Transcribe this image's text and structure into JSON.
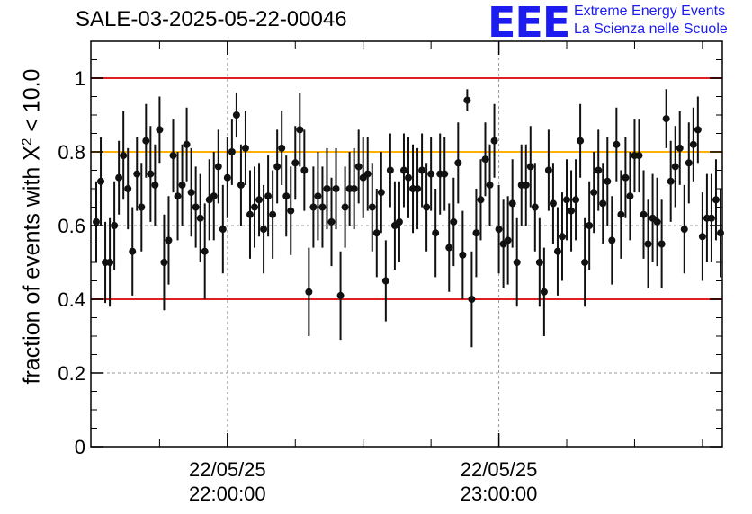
{
  "title": "SALE-03-2025-05-22-00046",
  "logo": {
    "mark": "EEE",
    "line1": "Extreme Energy Events",
    "line2": "La Scienza nelle Scuole",
    "color": "#1c1cf0"
  },
  "chart_data": {
    "type": "scatter",
    "title": "SALE-03-2025-05-22-00046",
    "ylabel": {
      "prefix": "fraction of events with ",
      "symbol": "X",
      "exp": "2",
      "suffix": " < 10.0"
    },
    "xlabel": "",
    "x_unit": "minutes after 22/05/25 21:31",
    "xlim": [
      0,
      138
    ],
    "ylim": [
      0,
      1.1
    ],
    "y_ticks": [
      0,
      0.2,
      0.4,
      0.6,
      0.8,
      1
    ],
    "y_tick_labels": [
      "0",
      "0.2",
      "0.4",
      "0.6",
      "0.8",
      "1"
    ],
    "x_major_ticks": [
      {
        "x": 29,
        "date": "22/05/25",
        "time": "22:00:00"
      },
      {
        "x": 89,
        "date": "22/05/25",
        "time": "23:00:00"
      }
    ],
    "x_minor_step": 15,
    "grid": true,
    "reference_lines": [
      {
        "y": 1.0,
        "color": "#e02020"
      },
      {
        "y": 0.8,
        "color": "#ffb000"
      },
      {
        "y": 0.4,
        "color": "#e02020"
      }
    ],
    "series": [
      {
        "color": "#111111",
        "x": [
          0,
          1,
          2,
          3,
          4,
          5,
          6,
          7,
          8,
          9,
          10,
          11,
          12,
          13,
          14,
          15,
          16,
          17,
          18,
          19,
          20,
          21,
          22,
          23,
          24,
          25,
          26,
          27,
          28,
          29,
          30,
          31,
          32,
          33,
          34,
          35,
          36,
          37,
          38,
          39,
          40,
          41,
          42,
          43,
          44,
          45,
          46,
          47,
          48,
          49,
          50,
          51,
          52,
          53,
          54,
          55,
          56,
          57,
          58,
          59,
          60,
          61,
          62,
          63,
          64,
          65,
          66,
          67,
          68,
          69,
          70,
          71,
          72,
          73,
          74,
          75,
          76,
          77,
          78,
          79,
          80,
          81,
          82,
          83,
          84,
          85,
          86,
          87,
          88,
          89,
          90,
          91,
          92,
          93,
          94,
          95,
          96,
          97,
          98,
          99,
          100,
          101,
          102,
          103,
          104,
          105,
          106,
          107,
          108,
          109,
          110,
          111,
          112,
          113,
          114,
          115,
          116,
          117,
          118,
          119,
          120,
          121,
          122,
          123,
          124,
          125,
          126,
          127,
          128,
          129,
          130,
          131,
          132,
          133,
          134,
          135,
          136,
          137,
          138
        ],
        "y": [
          0.61,
          0.72,
          0.5,
          0.5,
          0.6,
          0.73,
          0.79,
          0.7,
          0.53,
          0.74,
          0.65,
          0.83,
          0.74,
          0.71,
          0.86,
          0.5,
          0.56,
          0.79,
          0.68,
          0.71,
          0.82,
          0.69,
          0.65,
          0.62,
          0.53,
          0.67,
          0.68,
          0.76,
          0.59,
          0.73,
          0.8,
          0.9,
          0.71,
          0.81,
          0.63,
          0.65,
          0.67,
          0.59,
          0.68,
          0.63,
          0.76,
          0.81,
          0.68,
          0.64,
          0.77,
          0.86,
          0.75,
          0.42,
          0.65,
          0.68,
          0.65,
          0.7,
          0.61,
          0.7,
          0.41,
          0.65,
          0.7,
          0.7,
          0.76,
          0.73,
          0.74,
          0.65,
          0.58,
          0.69,
          0.45,
          0.75,
          0.6,
          0.61,
          0.75,
          0.73,
          0.7,
          0.7,
          0.75,
          0.65,
          0.74,
          0.58,
          0.74,
          0.74,
          0.54,
          0.61,
          0.77,
          0.52,
          0.94,
          0.4,
          0.58,
          0.67,
          0.78,
          0.71,
          0.83,
          0.59,
          0.55,
          0.56,
          0.66,
          0.5,
          0.71,
          0.71,
          0.76,
          0.65,
          0.5,
          0.42,
          0.75,
          0.66,
          0.53,
          0.57,
          0.67,
          0.64,
          0.67,
          0.83,
          0.5,
          0.6,
          0.69,
          0.75,
          0.66,
          0.72,
          0.56,
          0.82,
          0.63,
          0.73,
          0.68,
          0.79,
          0.79,
          0.63,
          0.55,
          0.62,
          0.61,
          0.55,
          0.89,
          0.72,
          0.76,
          0.81,
          0.59,
          0.77,
          0.82,
          0.86,
          0.57,
          0.62,
          0.62,
          0.67,
          0.58
        ],
        "err": [
          0.11,
          0.12,
          0.11,
          0.12,
          0.12,
          0.1,
          0.12,
          0.11,
          0.12,
          0.1,
          0.12,
          0.1,
          0.13,
          0.11,
          0.09,
          0.13,
          0.12,
          0.1,
          0.12,
          0.11,
          0.1,
          0.12,
          0.11,
          0.12,
          0.13,
          0.11,
          0.12,
          0.1,
          0.12,
          0.11,
          0.09,
          0.06,
          0.11,
          0.1,
          0.12,
          0.11,
          0.1,
          0.12,
          0.11,
          0.12,
          0.1,
          0.1,
          0.11,
          0.12,
          0.1,
          0.1,
          0.11,
          0.12,
          0.11,
          0.12,
          0.11,
          0.11,
          0.12,
          0.11,
          0.12,
          0.11,
          0.1,
          0.11,
          0.1,
          0.11,
          0.1,
          0.12,
          0.12,
          0.11,
          0.11,
          0.1,
          0.12,
          0.11,
          0.1,
          0.11,
          0.12,
          0.11,
          0.1,
          0.12,
          0.1,
          0.12,
          0.11,
          0.1,
          0.12,
          0.12,
          0.11,
          0.12,
          0.03,
          0.13,
          0.12,
          0.11,
          0.1,
          0.11,
          0.1,
          0.12,
          0.12,
          0.12,
          0.12,
          0.12,
          0.11,
          0.11,
          0.11,
          0.12,
          0.12,
          0.12,
          0.11,
          0.11,
          0.12,
          0.12,
          0.11,
          0.11,
          0.11,
          0.1,
          0.12,
          0.12,
          0.11,
          0.11,
          0.11,
          0.12,
          0.12,
          0.1,
          0.12,
          0.11,
          0.12,
          0.1,
          0.1,
          0.12,
          0.12,
          0.12,
          0.12,
          0.12,
          0.08,
          0.11,
          0.11,
          0.1,
          0.12,
          0.11,
          0.1,
          0.09,
          0.12,
          0.12,
          0.12,
          0.11,
          0.12
        ]
      }
    ]
  }
}
